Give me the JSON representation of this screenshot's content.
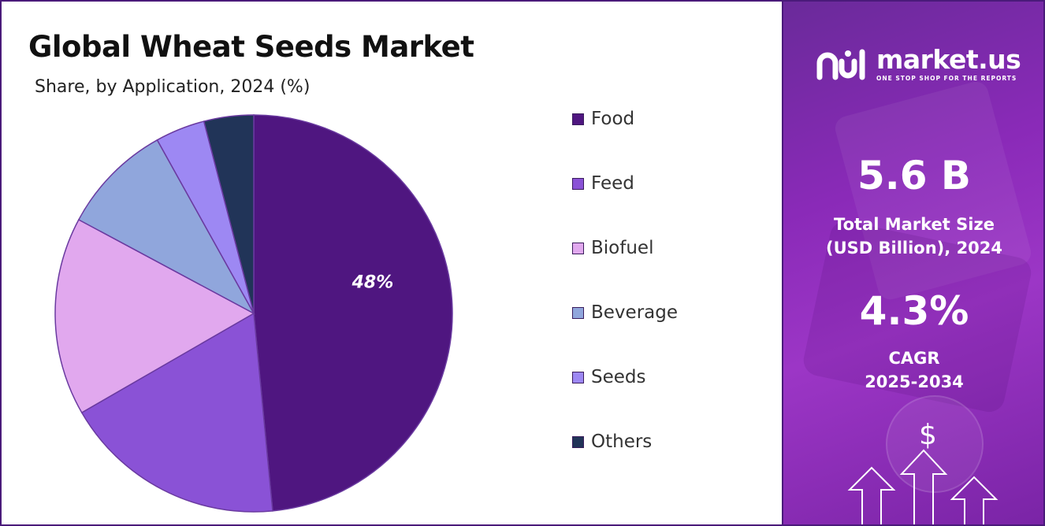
{
  "title": "Global Wheat Seeds Market",
  "subtitle": "Share, by Application, 2024 (%)",
  "chart_data": {
    "type": "pie",
    "title": "Global Wheat Seeds Market",
    "subtitle": "Share, by Application, 2024 (%)",
    "categories": [
      "Food",
      "Feed",
      "Biofuel",
      "Beverage",
      "Seeds",
      "Others"
    ],
    "values": [
      48,
      18,
      16,
      9,
      4,
      4
    ],
    "colors": [
      "#4f1680",
      "#8a52d6",
      "#e1a8ee",
      "#90a6dc",
      "#9d88f3",
      "#213458"
    ],
    "data_labels": [
      {
        "category": "Food",
        "text": "48%"
      }
    ],
    "legend_position": "right"
  },
  "legend": [
    "Food",
    "Feed",
    "Biofuel",
    "Beverage",
    "Seeds",
    "Others"
  ],
  "brand": {
    "name": "market.us",
    "tagline": "ONE STOP SHOP FOR THE REPORTS"
  },
  "stats": {
    "market_size_value": "5.6 B",
    "market_size_label_line1": "Total Market Size",
    "market_size_label_line2": "(USD Billion), 2024",
    "cagr_value": "4.3%",
    "cagr_label_line1": "CAGR",
    "cagr_label_line2": "2025-2034"
  },
  "decor": {
    "dollar_symbol": "$",
    "icons": [
      "dollar-icon",
      "arrow-up-icon"
    ]
  }
}
